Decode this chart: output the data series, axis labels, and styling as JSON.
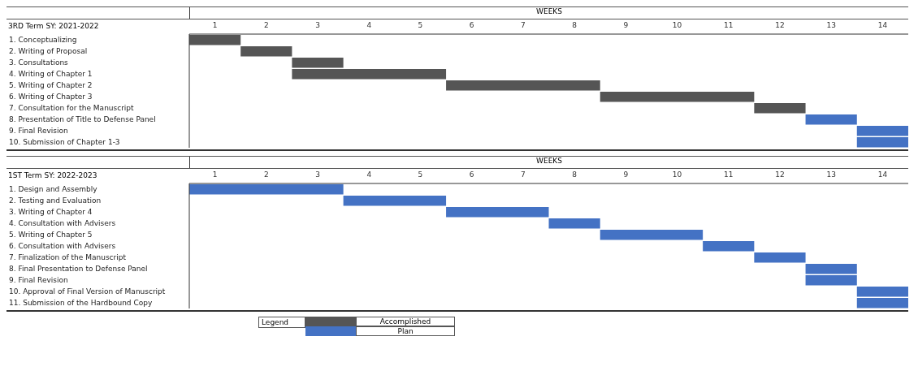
{
  "chart_data": [
    {
      "type": "bar",
      "orientation": "horizontal",
      "xlabel": "WEEKS",
      "ylabel": "3RD Term SY: 2021-2022",
      "categories": [
        "1. Conceptualizing",
        "2. Writing of Proposal",
        "3. Consultations",
        "4. Writing of Chapter 1",
        "5. Writing of Chapter 2",
        "6. Writing of Chapter 3",
        "7. Consultation for the Manuscript",
        "8. Presentation of Title to Defense Panel",
        "9. Final Revision",
        "10. Submission of Chapter 1-3"
      ],
      "base": [
        0,
        1,
        2,
        2,
        5,
        8,
        11,
        12,
        13,
        13
      ],
      "values": [
        1,
        1,
        1,
        3,
        3,
        3,
        1,
        1,
        1,
        1
      ],
      "colors": [
        "#555555",
        "#555555",
        "#555555",
        "#555555",
        "#555555",
        "#555555",
        "#555555",
        "#4472c4",
        "#4472c4",
        "#4472c4"
      ],
      "xlim": [
        0,
        14
      ],
      "xticks": [
        {
          "value": 0.5,
          "label": "1"
        },
        {
          "value": 1.5,
          "label": "2"
        },
        {
          "value": 2.5,
          "label": "3"
        },
        {
          "value": 3.5,
          "label": "4"
        },
        {
          "value": 4.5,
          "label": "5"
        },
        {
          "value": 5.5,
          "label": "6"
        },
        {
          "value": 6.5,
          "label": "7"
        },
        {
          "value": 7.5,
          "label": "8"
        },
        {
          "value": 8.5,
          "label": "9"
        },
        {
          "value": 9.5,
          "label": "10"
        },
        {
          "value": 10.5,
          "label": "11"
        },
        {
          "value": 11.5,
          "label": "12"
        },
        {
          "value": 12.5,
          "label": "13"
        },
        {
          "value": 13.5,
          "label": "14"
        }
      ]
    },
    {
      "type": "bar",
      "orientation": "horizontal",
      "xlabel": "WEEKS",
      "ylabel": "1ST Term SY: 2022-2023",
      "categories": [
        "1. Design and Assembly",
        "2. Testing and Evaluation",
        "3. Writing of Chapter 4",
        "4. Consultation with Advisers",
        "5. Writing of Chapter 5",
        "6. Consultation with Advisers",
        "7. Finalization of the Manuscript",
        "8. Final Presentation to Defense Panel",
        "9. Final Revision",
        "10. Approval of Final Version of Manuscript",
        "11. Submission of the Hardbound Copy"
      ],
      "base": [
        0,
        3,
        5,
        7,
        8,
        10,
        11,
        12,
        12,
        13,
        13
      ],
      "values": [
        3,
        2,
        2,
        1,
        2,
        1,
        1,
        1,
        1,
        1,
        1
      ],
      "colors": [
        "#4472c4",
        "#4472c4",
        "#4472c4",
        "#4472c4",
        "#4472c4",
        "#4472c4",
        "#4472c4",
        "#4472c4",
        "#4472c4",
        "#4472c4",
        "#4472c4"
      ],
      "xlim": [
        0,
        14
      ],
      "xticks": [
        {
          "value": 0.5,
          "label": "1"
        },
        {
          "value": 1.5,
          "label": "2"
        },
        {
          "value": 2.5,
          "label": "3"
        },
        {
          "value": 3.5,
          "label": "4"
        },
        {
          "value": 4.5,
          "label": "5"
        },
        {
          "value": 5.5,
          "label": "6"
        },
        {
          "value": 6.5,
          "label": "7"
        },
        {
          "value": 7.5,
          "label": "8"
        },
        {
          "value": 8.5,
          "label": "9"
        },
        {
          "value": 9.5,
          "label": "10"
        },
        {
          "value": 10.5,
          "label": "11"
        },
        {
          "value": 11.5,
          "label": "12"
        },
        {
          "value": 12.5,
          "label": "13"
        },
        {
          "value": 13.5,
          "label": "14"
        }
      ]
    },
    {
      "type": "other",
      "title": "Legend",
      "annotations": [
        "Accomplished",
        "Plan"
      ]
    }
  ]
}
